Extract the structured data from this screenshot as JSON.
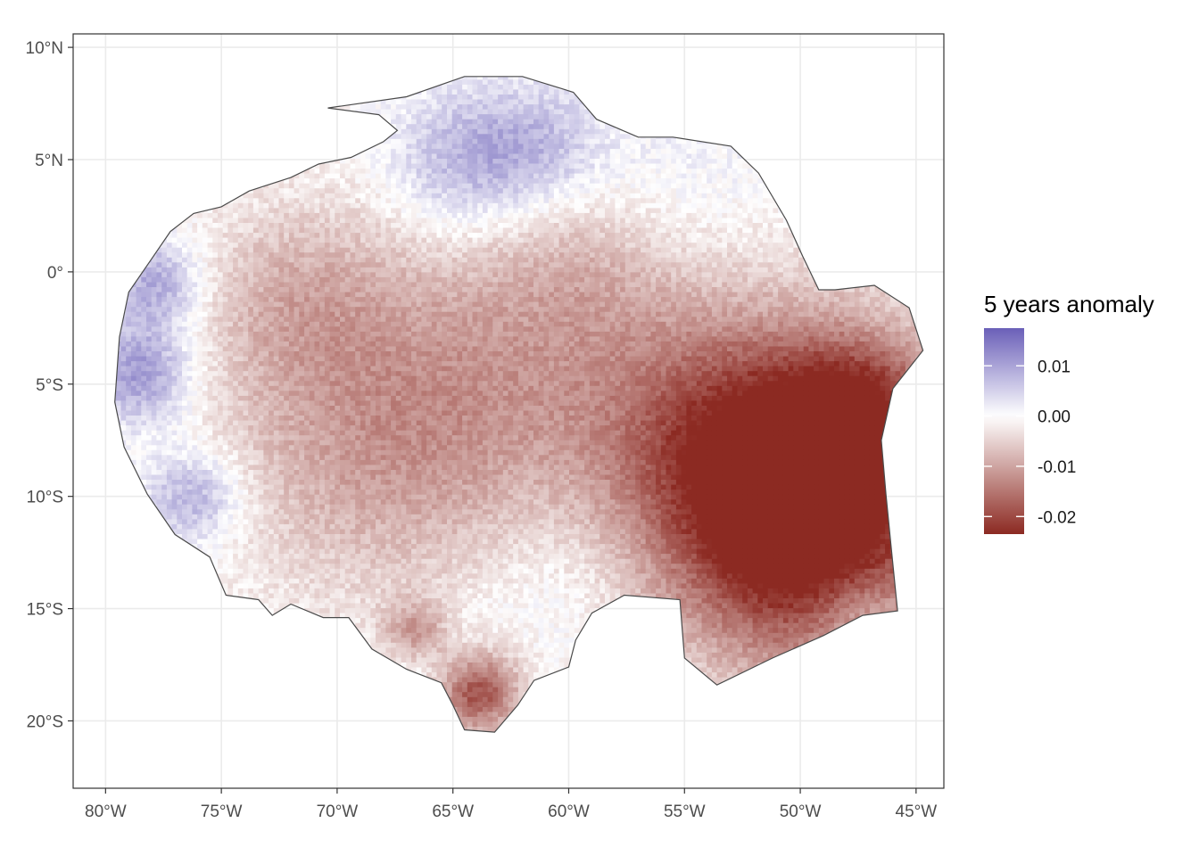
{
  "chart_data": {
    "type": "heatmap",
    "subtype": "raster-map",
    "title": "",
    "xlabel": "",
    "ylabel": "",
    "x_ticks": [
      {
        "value": -80,
        "label": "80°W"
      },
      {
        "value": -75,
        "label": "75°W"
      },
      {
        "value": -70,
        "label": "70°W"
      },
      {
        "value": -65,
        "label": "65°W"
      },
      {
        "value": -60,
        "label": "60°W"
      },
      {
        "value": -55,
        "label": "55°W"
      },
      {
        "value": -50,
        "label": "50°W"
      },
      {
        "value": -45,
        "label": "45°W"
      }
    ],
    "y_ticks": [
      {
        "value": 10,
        "label": "10°N"
      },
      {
        "value": 5,
        "label": "5°N"
      },
      {
        "value": 0,
        "label": "0°"
      },
      {
        "value": -5,
        "label": "5°S"
      },
      {
        "value": -10,
        "label": "10°S"
      },
      {
        "value": -15,
        "label": "15°S"
      },
      {
        "value": -20,
        "label": "20°S"
      }
    ],
    "xlim": [
      -81.4,
      -43.8
    ],
    "ylim": [
      -23.0,
      10.6
    ],
    "grid": true,
    "legend": {
      "title": "5 years anomaly",
      "position": "right",
      "range": [
        -0.0235,
        0.0175
      ],
      "breaks": [
        {
          "value": 0.01,
          "label": "0.01"
        },
        {
          "value": 0.0,
          "label": "0.00"
        },
        {
          "value": -0.01,
          "label": "-0.01"
        },
        {
          "value": -0.02,
          "label": "-0.02"
        }
      ],
      "colors": {
        "high": "#6a5fb8",
        "mid": "#ffffff",
        "low": "#8c2a22"
      }
    },
    "boundary": [
      [
        -70.4,
        7.3
      ],
      [
        -67,
        7.8
      ],
      [
        -64.5,
        8.7
      ],
      [
        -62,
        8.7
      ],
      [
        -59.8,
        8.0
      ],
      [
        -58.8,
        6.8
      ],
      [
        -57,
        6.0
      ],
      [
        -55.5,
        6.0
      ],
      [
        -53,
        5.6
      ],
      [
        -51.8,
        4.4
      ],
      [
        -50.6,
        2.3
      ],
      [
        -49.9,
        0.7
      ],
      [
        -49.2,
        -0.8
      ],
      [
        -48.5,
        -0.8
      ],
      [
        -46.8,
        -0.6
      ],
      [
        -45.3,
        -1.6
      ],
      [
        -44.7,
        -3.5
      ],
      [
        -46.0,
        -5.2
      ],
      [
        -46.5,
        -7.5
      ],
      [
        -46.3,
        -9.9
      ],
      [
        -46.1,
        -12.0
      ],
      [
        -45.8,
        -15.1
      ],
      [
        -47.3,
        -15.3
      ],
      [
        -49.0,
        -16.2
      ],
      [
        -51.2,
        -17.2
      ],
      [
        -53.6,
        -18.4
      ],
      [
        -55.0,
        -17.2
      ],
      [
        -55.2,
        -14.6
      ],
      [
        -57.6,
        -14.4
      ],
      [
        -59.0,
        -15.2
      ],
      [
        -59.7,
        -16.4
      ],
      [
        -60.0,
        -17.6
      ],
      [
        -61.5,
        -18.2
      ],
      [
        -62.2,
        -19.3
      ],
      [
        -63.2,
        -20.5
      ],
      [
        -64.5,
        -20.4
      ],
      [
        -65.0,
        -19.3
      ],
      [
        -65.5,
        -18.3
      ],
      [
        -67.0,
        -17.7
      ],
      [
        -68.5,
        -16.8
      ],
      [
        -69.5,
        -15.4
      ],
      [
        -70.6,
        -15.4
      ],
      [
        -72.0,
        -14.8
      ],
      [
        -72.8,
        -15.3
      ],
      [
        -73.4,
        -14.6
      ],
      [
        -74.8,
        -14.4
      ],
      [
        -75.5,
        -12.7
      ],
      [
        -77.0,
        -11.7
      ],
      [
        -78.2,
        -9.9
      ],
      [
        -79.2,
        -7.8
      ],
      [
        -79.6,
        -5.8
      ],
      [
        -79.4,
        -2.9
      ],
      [
        -79.0,
        -0.9
      ],
      [
        -78.0,
        0.6
      ],
      [
        -77.2,
        1.8
      ],
      [
        -76.2,
        2.6
      ],
      [
        -75.0,
        2.9
      ],
      [
        -73.8,
        3.6
      ],
      [
        -72.0,
        4.2
      ],
      [
        -70.8,
        4.8
      ],
      [
        -69.4,
        5.1
      ],
      [
        -68.0,
        5.8
      ],
      [
        -67.4,
        6.3
      ],
      [
        -68.2,
        7.0
      ]
    ],
    "anomaly_field": {
      "background": 0.0,
      "centers": [
        {
          "lon": -49.0,
          "lat": -9.5,
          "value": -0.017,
          "spread": 5.0
        },
        {
          "lon": -50.0,
          "lat": -12.5,
          "value": -0.014,
          "spread": 3.8
        },
        {
          "lon": -53.0,
          "lat": -7.5,
          "value": -0.012,
          "spread": 4.0
        },
        {
          "lon": -47.5,
          "lat": -6.0,
          "value": -0.011,
          "spread": 2.2
        },
        {
          "lon": -68.5,
          "lat": -7.5,
          "value": -0.009,
          "spread": 5.0
        },
        {
          "lon": -62.0,
          "lat": -4.0,
          "value": -0.007,
          "spread": 5.5
        },
        {
          "lon": -72.0,
          "lat": -1.0,
          "value": -0.006,
          "spread": 3.0
        },
        {
          "lon": -59.0,
          "lat": 0.5,
          "value": -0.004,
          "spread": 3.0
        },
        {
          "lon": -64.0,
          "lat": -18.7,
          "value": -0.02,
          "spread": 1.3
        },
        {
          "lon": -66.5,
          "lat": -16.2,
          "value": -0.015,
          "spread": 1.1
        },
        {
          "lon": -64.5,
          "lat": 4.8,
          "value": 0.009,
          "spread": 2.3
        },
        {
          "lon": -61.2,
          "lat": 5.5,
          "value": 0.007,
          "spread": 2.0
        },
        {
          "lon": -56.0,
          "lat": 3.8,
          "value": 0.003,
          "spread": 3.0
        },
        {
          "lon": -78.5,
          "lat": -4.5,
          "value": 0.012,
          "spread": 1.6
        },
        {
          "lon": -77.8,
          "lat": -0.5,
          "value": 0.01,
          "spread": 1.4
        },
        {
          "lon": -76.2,
          "lat": -10.0,
          "value": 0.01,
          "spread": 1.5
        },
        {
          "lon": -66.0,
          "lat": -17.0,
          "value": 0.008,
          "spread": 1.5
        },
        {
          "lon": -47.5,
          "lat": -15.2,
          "value": 0.006,
          "spread": 1.5
        },
        {
          "lon": -60.5,
          "lat": -13.5,
          "value": 0.003,
          "spread": 2.5
        }
      ]
    }
  }
}
